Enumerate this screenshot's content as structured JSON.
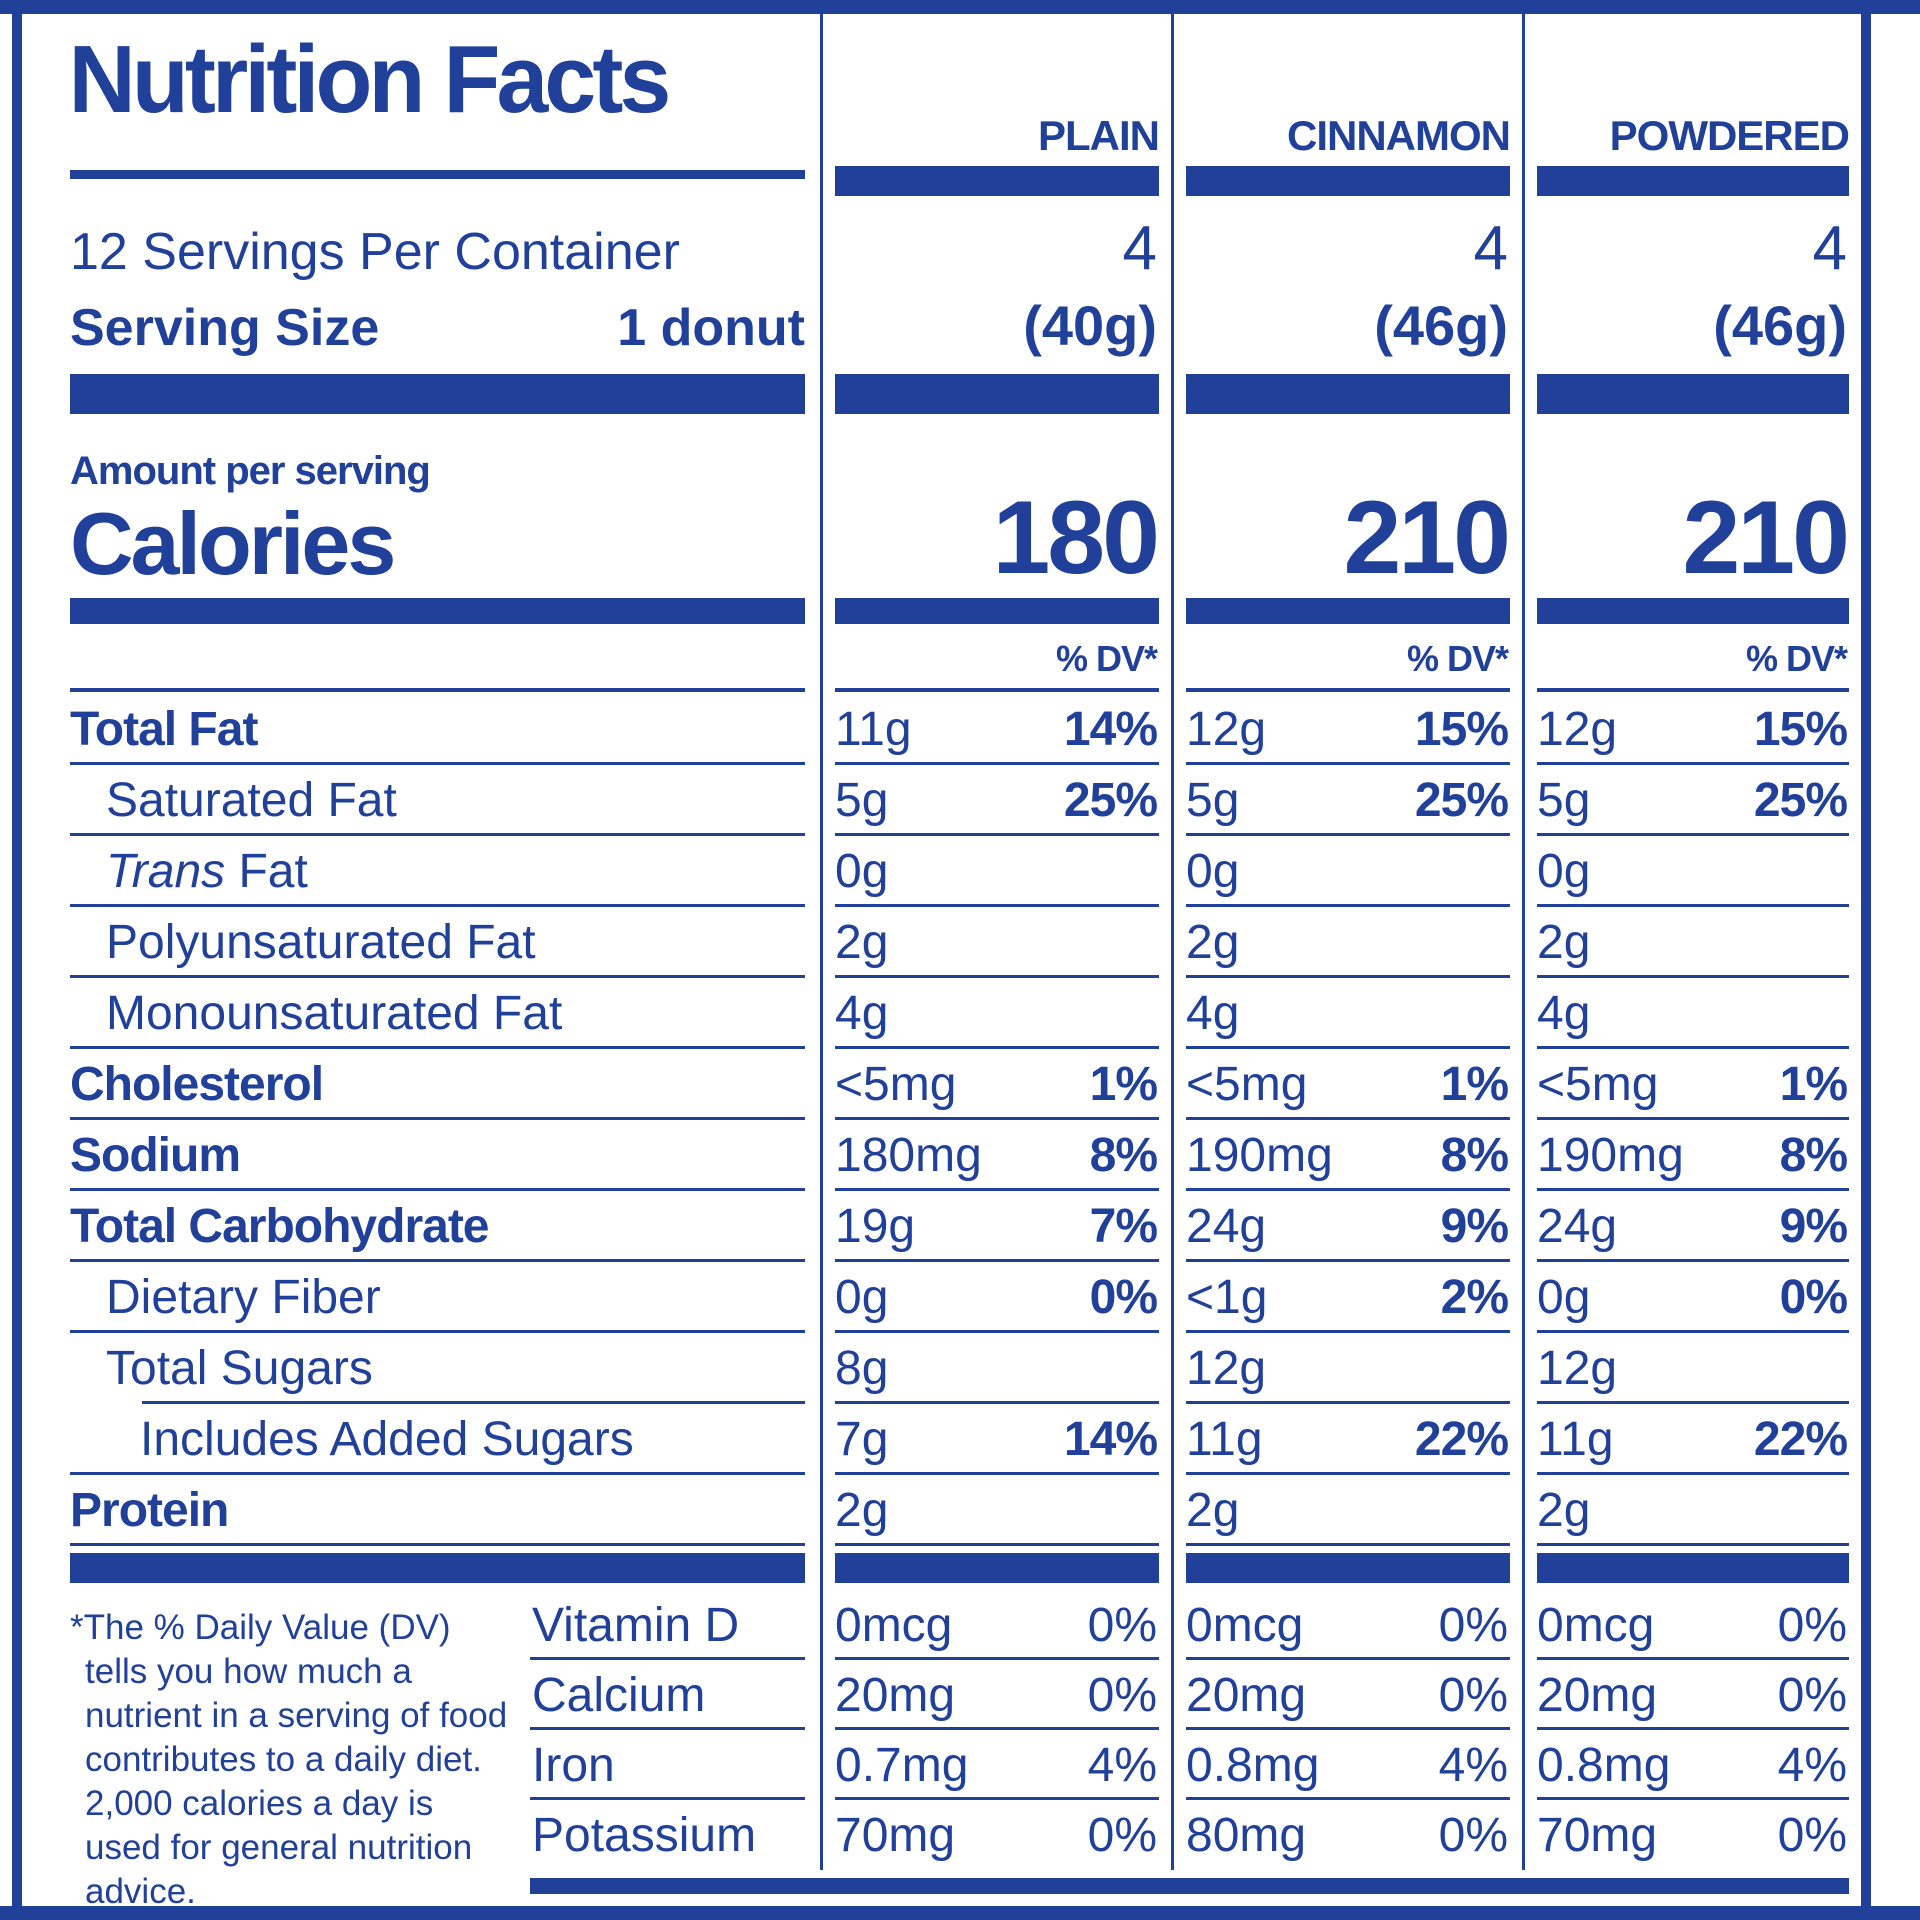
{
  "title": "Nutrition Facts",
  "servings_per_container_label": "12 Servings Per Container",
  "serving_size_label": "Serving Size",
  "serving_size_value": "1 donut",
  "amount_per_serving_label": "Amount per serving",
  "calories_label": "Calories",
  "dv_header": "% DV*",
  "columns": [
    {
      "name": "PLAIN",
      "servings": "4",
      "serving_size": "(40g)",
      "calories": "180"
    },
    {
      "name": "CINNAMON",
      "servings": "4",
      "serving_size": "(46g)",
      "calories": "210"
    },
    {
      "name": "POWDERED",
      "servings": "4",
      "serving_size": "(46g)",
      "calories": "210"
    }
  ],
  "nutrients": [
    {
      "label": "Total Fat",
      "bold": true,
      "indent": 0,
      "cells": [
        [
          "11g",
          "14%"
        ],
        [
          "12g",
          "15%"
        ],
        [
          "12g",
          "15%"
        ]
      ]
    },
    {
      "label": "Saturated Fat",
      "bold": false,
      "indent": 1,
      "cells": [
        [
          "5g",
          "25%"
        ],
        [
          "5g",
          "25%"
        ],
        [
          "5g",
          "25%"
        ]
      ]
    },
    {
      "label": "Trans Fat",
      "bold": false,
      "indent": 1,
      "italic_first": true,
      "cells": [
        [
          "0g",
          ""
        ],
        [
          "0g",
          ""
        ],
        [
          "0g",
          ""
        ]
      ]
    },
    {
      "label": "Polyunsaturated Fat",
      "bold": false,
      "indent": 1,
      "cells": [
        [
          "2g",
          ""
        ],
        [
          "2g",
          ""
        ],
        [
          "2g",
          ""
        ]
      ]
    },
    {
      "label": "Monounsaturated Fat",
      "bold": false,
      "indent": 1,
      "cells": [
        [
          "4g",
          ""
        ],
        [
          "4g",
          ""
        ],
        [
          "4g",
          ""
        ]
      ]
    },
    {
      "label": "Cholesterol",
      "bold": true,
      "indent": 0,
      "cells": [
        [
          "<5mg",
          "1%"
        ],
        [
          "<5mg",
          "1%"
        ],
        [
          "<5mg",
          "1%"
        ]
      ]
    },
    {
      "label": "Sodium",
      "bold": true,
      "indent": 0,
      "cells": [
        [
          "180mg",
          "8%"
        ],
        [
          "190mg",
          "8%"
        ],
        [
          "190mg",
          "8%"
        ]
      ]
    },
    {
      "label": "Total Carbohydrate",
      "bold": true,
      "indent": 0,
      "cells": [
        [
          "19g",
          "7%"
        ],
        [
          "24g",
          "9%"
        ],
        [
          "24g",
          "9%"
        ]
      ]
    },
    {
      "label": "Dietary Fiber",
      "bold": false,
      "indent": 1,
      "cells": [
        [
          "0g",
          "0%"
        ],
        [
          "<1g",
          "2%"
        ],
        [
          "0g",
          "0%"
        ]
      ]
    },
    {
      "label": "Total Sugars",
      "bold": false,
      "indent": 1,
      "rule_indent": true,
      "cells": [
        [
          "8g",
          ""
        ],
        [
          "12g",
          ""
        ],
        [
          "12g",
          ""
        ]
      ]
    },
    {
      "label": "Includes Added Sugars",
      "bold": false,
      "indent": 2,
      "cells": [
        [
          "7g",
          "14%"
        ],
        [
          "11g",
          "22%"
        ],
        [
          "11g",
          "22%"
        ]
      ]
    },
    {
      "label": "Protein",
      "bold": true,
      "indent": 0,
      "cells": [
        [
          "2g",
          ""
        ],
        [
          "2g",
          ""
        ],
        [
          "2g",
          ""
        ]
      ]
    }
  ],
  "vitamins": [
    {
      "label": "Vitamin D",
      "cells": [
        [
          "0mcg",
          "0%"
        ],
        [
          "0mcg",
          "0%"
        ],
        [
          "0mcg",
          "0%"
        ]
      ]
    },
    {
      "label": "Calcium",
      "cells": [
        [
          "20mg",
          "0%"
        ],
        [
          "20mg",
          "0%"
        ],
        [
          "20mg",
          "0%"
        ]
      ]
    },
    {
      "label": "Iron",
      "cells": [
        [
          "0.7mg",
          "4%"
        ],
        [
          "0.8mg",
          "4%"
        ],
        [
          "0.8mg",
          "4%"
        ]
      ]
    },
    {
      "label": "Potassium",
      "cells": [
        [
          "70mg",
          "0%"
        ],
        [
          "80mg",
          "0%"
        ],
        [
          "70mg",
          "0%"
        ]
      ]
    }
  ],
  "footnote": "*The % Daily Value (DV) tells you how much a nutrient in a serving of food contributes to a daily diet. 2,000 calories a day is used for general nutrition advice.",
  "colors": {
    "brand_blue": "#21409a",
    "background": "#ffffff"
  }
}
